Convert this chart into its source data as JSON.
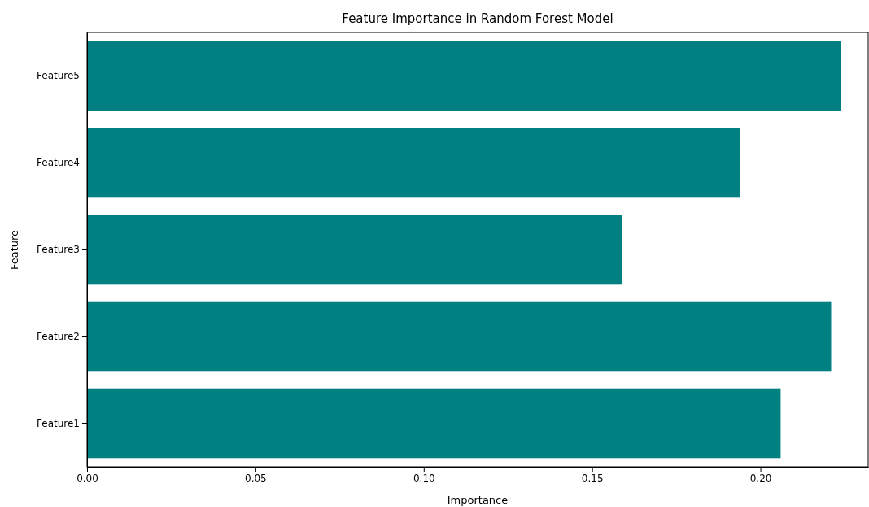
{
  "chart_data": {
    "type": "bar",
    "orientation": "horizontal",
    "title": "Feature Importance in Random Forest Model",
    "xlabel": "Importance",
    "ylabel": "Feature",
    "categories": [
      "Feature5",
      "Feature4",
      "Feature3",
      "Feature2",
      "Feature1"
    ],
    "values": [
      0.224,
      0.194,
      0.159,
      0.221,
      0.206
    ],
    "color": "#008080",
    "xlim": [
      0,
      0.232
    ],
    "xticks": [
      {
        "value": 0,
        "label": "0.00"
      },
      {
        "value": 0.05,
        "label": "0.05"
      },
      {
        "value": 0.1,
        "label": "0.10"
      },
      {
        "value": 0.15,
        "label": "0.15"
      },
      {
        "value": 0.2,
        "label": "0.20"
      }
    ],
    "grid": false
  }
}
